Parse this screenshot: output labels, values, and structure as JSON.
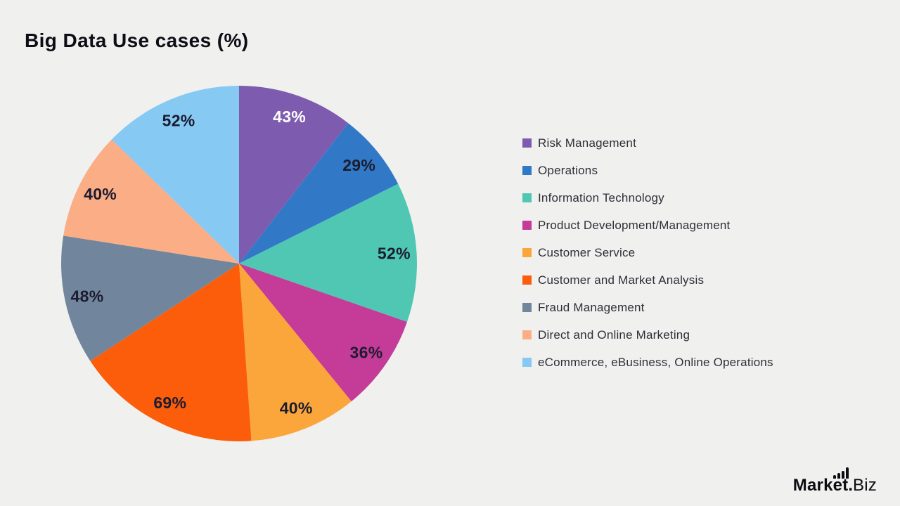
{
  "page": {
    "background": "#f0f0ef"
  },
  "header": {
    "title": "Big Data Use cases (%)"
  },
  "chart_data": {
    "type": "pie",
    "title": "Big Data Use cases (%)",
    "value_suffix": "%",
    "start_angle_deg": 0,
    "direction": "clockwise",
    "legend_position": "right",
    "label_position": "inside",
    "label_radius_ratio": 0.873,
    "slices": [
      {
        "label": "Risk Management",
        "value": 43,
        "color": "#7d5bae",
        "text_color": "#ffffff"
      },
      {
        "label": "Operations",
        "value": 29,
        "color": "#3179c6",
        "text_color": "#1c1c30"
      },
      {
        "label": "Information Technology",
        "value": 52,
        "color": "#4fc7b2",
        "text_color": "#1c1c30"
      },
      {
        "label": "Product Development/Management",
        "value": 36,
        "color": "#c43b98",
        "text_color": "#1c1c30"
      },
      {
        "label": "Customer Service",
        "value": 40,
        "color": "#fba63a",
        "text_color": "#1c1c30"
      },
      {
        "label": "Customer and Market Analysis",
        "value": 69,
        "color": "#fb5d0a",
        "text_color": "#1c1c30"
      },
      {
        "label": "Fraud Management",
        "value": 48,
        "color": "#71869d",
        "text_color": "#1c1c30"
      },
      {
        "label": "Direct and Online Marketing",
        "value": 40,
        "color": "#fbad85",
        "text_color": "#1c1c30"
      },
      {
        "label": "eCommerce, eBusiness, Online Operations",
        "value": 52,
        "color": "#86c9f2",
        "text_color": "#1c1c30"
      }
    ]
  },
  "logo": {
    "name_bold": "Market",
    "dot": ".",
    "name_light": "Biz"
  }
}
